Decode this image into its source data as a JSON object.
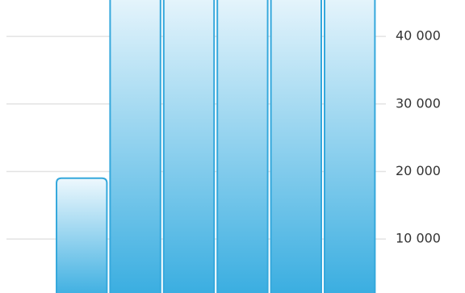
{
  "chart_data": {
    "type": "bar",
    "categories": [
      null,
      null,
      null,
      null,
      null,
      null
    ],
    "values": [
      19000,
      48000,
      48000,
      48000,
      48000,
      48000
    ],
    "color": "#35a8dc",
    "ylim": [
      2000,
      45400
    ],
    "yticks": [
      {
        "value": 10000,
        "label": "10 000"
      },
      {
        "value": 20000,
        "label": "20 000"
      },
      {
        "value": 30000,
        "label": "30 000"
      },
      {
        "value": 40000,
        "label": "40 000"
      }
    ],
    "grid": true
  }
}
